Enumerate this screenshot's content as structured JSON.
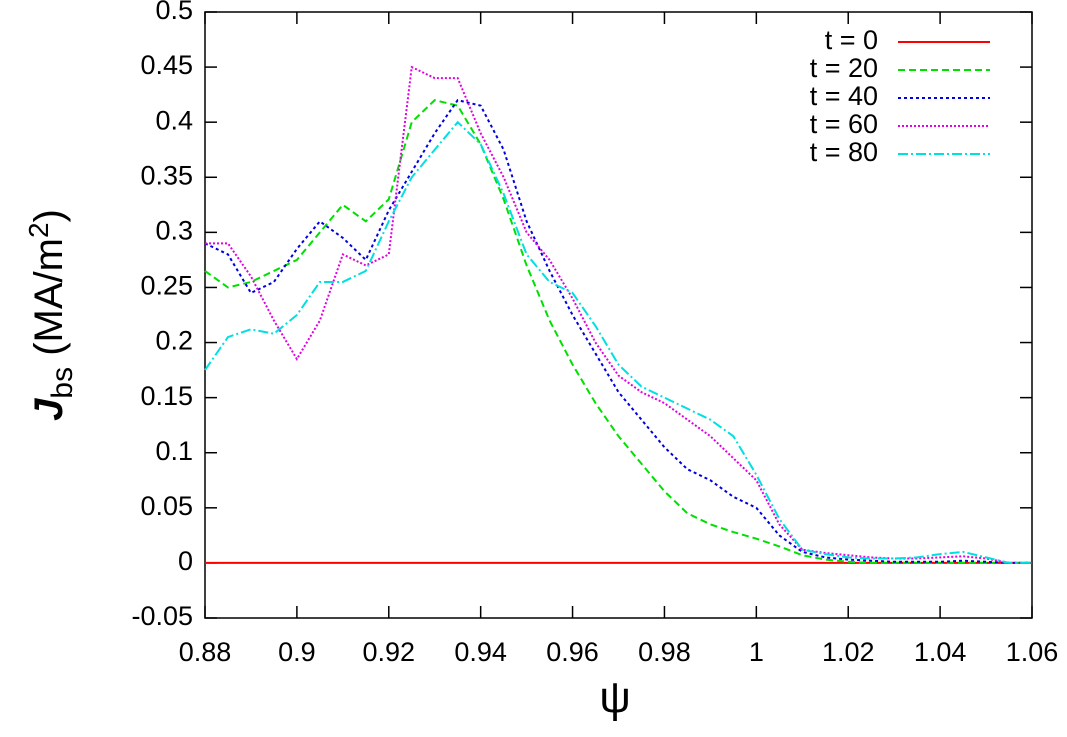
{
  "chart_data": {
    "type": "line",
    "ylabel": {
      "main": "J",
      "sub": "bs",
      "rest": " (MA/m",
      "sup": "2",
      "end": ")"
    },
    "xlabel": "ψ",
    "xlim": [
      0.88,
      1.06
    ],
    "ylim": [
      -0.05,
      0.5
    ],
    "xticks": [
      0.88,
      0.9,
      0.92,
      0.94,
      0.96,
      0.98,
      1,
      1.02,
      1.04,
      1.06
    ],
    "yticks": [
      -0.05,
      0,
      0.05,
      0.1,
      0.15,
      0.2,
      0.25,
      0.3,
      0.35,
      0.4,
      0.45,
      0.5
    ],
    "grid": false,
    "legend": "top-right",
    "x": [
      0.88,
      0.885,
      0.89,
      0.895,
      0.9,
      0.905,
      0.91,
      0.915,
      0.92,
      0.925,
      0.93,
      0.935,
      0.94,
      0.945,
      0.95,
      0.955,
      0.96,
      0.965,
      0.97,
      0.975,
      0.98,
      0.985,
      0.99,
      0.995,
      1.0,
      1.005,
      1.01,
      1.015,
      1.02,
      1.025,
      1.03,
      1.035,
      1.04,
      1.045,
      1.05,
      1.055,
      1.06
    ],
    "series": [
      {
        "name": "t = 0",
        "color": "#ff0000",
        "dash": "none",
        "values": [
          0,
          0,
          0,
          0,
          0,
          0,
          0,
          0,
          0,
          0,
          0,
          0,
          0,
          0,
          0,
          0,
          0,
          0,
          0,
          0,
          0,
          0,
          0,
          0,
          0,
          0,
          0,
          0,
          0,
          0,
          0,
          0,
          0,
          0,
          0,
          0,
          0
        ]
      },
      {
        "name": "t = 20",
        "color": "#00e000",
        "dash": "7 4",
        "values": [
          0.265,
          0.25,
          0.255,
          0.265,
          0.275,
          0.3,
          0.325,
          0.31,
          0.33,
          0.4,
          0.42,
          0.415,
          0.38,
          0.33,
          0.27,
          0.22,
          0.18,
          0.145,
          0.115,
          0.09,
          0.065,
          0.045,
          0.035,
          0.028,
          0.022,
          0.015,
          0.007,
          0.003,
          0.001,
          0,
          0,
          0,
          0,
          0,
          0,
          0,
          0
        ]
      },
      {
        "name": "t = 40",
        "color": "#0000e0",
        "dash": "3 3",
        "values": [
          0.29,
          0.28,
          0.245,
          0.255,
          0.285,
          0.31,
          0.295,
          0.275,
          0.32,
          0.355,
          0.39,
          0.42,
          0.415,
          0.375,
          0.31,
          0.265,
          0.225,
          0.19,
          0.155,
          0.13,
          0.105,
          0.085,
          0.075,
          0.06,
          0.05,
          0.025,
          0.01,
          0.005,
          0.003,
          0.002,
          0.001,
          0.001,
          0.001,
          0.002,
          0.001,
          0,
          0
        ]
      },
      {
        "name": "t = 60",
        "color": "#e000e0",
        "dash": "2 2",
        "values": [
          0.29,
          0.29,
          0.26,
          0.22,
          0.185,
          0.22,
          0.28,
          0.27,
          0.28,
          0.45,
          0.44,
          0.44,
          0.39,
          0.35,
          0.3,
          0.275,
          0.24,
          0.2,
          0.17,
          0.155,
          0.145,
          0.13,
          0.115,
          0.095,
          0.075,
          0.035,
          0.012,
          0.009,
          0.007,
          0.005,
          0.004,
          0.004,
          0.005,
          0.006,
          0.004,
          0,
          0
        ]
      },
      {
        "name": "t = 80",
        "color": "#00e0e0",
        "dash": "10 3 2 3",
        "values": [
          0.175,
          0.205,
          0.212,
          0.208,
          0.225,
          0.255,
          0.255,
          0.265,
          0.31,
          0.35,
          0.375,
          0.4,
          0.38,
          0.335,
          0.28,
          0.255,
          0.245,
          0.215,
          0.18,
          0.16,
          0.15,
          0.14,
          0.13,
          0.115,
          0.08,
          0.04,
          0.012,
          0.008,
          0.005,
          0.004,
          0.004,
          0.005,
          0.008,
          0.01,
          0.005,
          0,
          0
        ]
      }
    ]
  }
}
